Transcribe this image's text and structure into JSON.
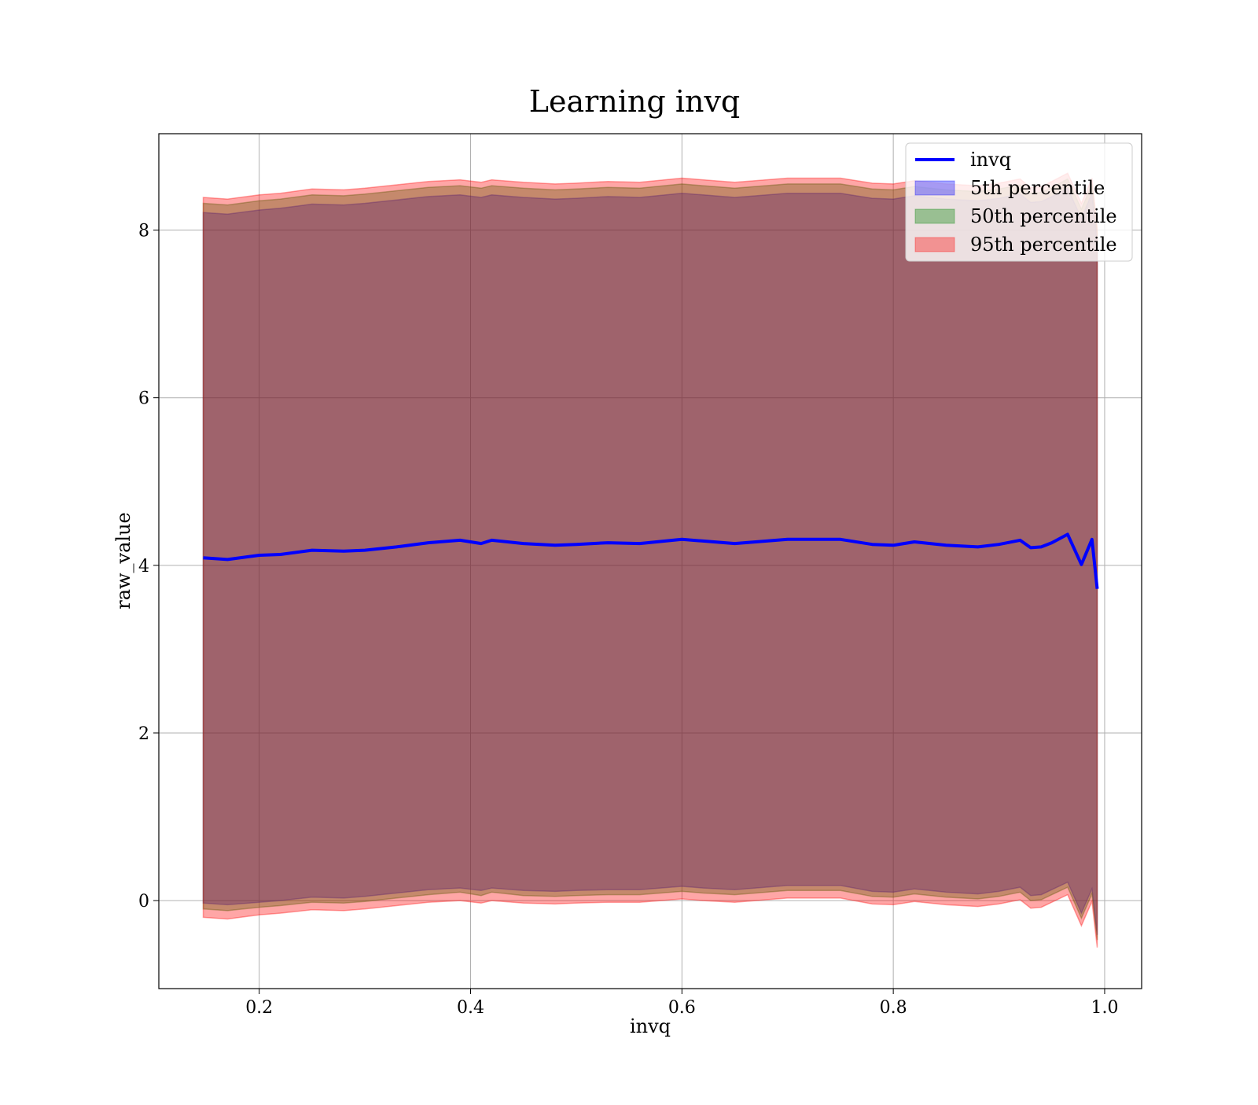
{
  "chart_data": {
    "type": "area",
    "title": "Learning invq",
    "xlabel": "invq",
    "ylabel": "raw_value",
    "xlim": [
      0.105,
      1.035
    ],
    "ylim": [
      -1.05,
      9.15
    ],
    "xticks": [
      0.2,
      0.4,
      0.6,
      0.8,
      1.0
    ],
    "xtick_labels": [
      "0.2",
      "0.4",
      "0.6",
      "0.8",
      "1.0"
    ],
    "yticks": [
      0,
      2,
      4,
      6,
      8
    ],
    "ytick_labels": [
      "0",
      "2",
      "4",
      "6",
      "8"
    ],
    "grid": true,
    "legend_position": "top-right",
    "x": [
      0.147,
      0.17,
      0.2,
      0.22,
      0.25,
      0.28,
      0.3,
      0.33,
      0.36,
      0.39,
      0.41,
      0.42,
      0.45,
      0.48,
      0.5,
      0.53,
      0.56,
      0.6,
      0.62,
      0.65,
      0.7,
      0.75,
      0.78,
      0.8,
      0.82,
      0.85,
      0.88,
      0.9,
      0.92,
      0.93,
      0.94,
      0.95,
      0.965,
      0.978,
      0.988,
      0.993
    ],
    "series": [
      {
        "name": "invq",
        "kind": "line",
        "color": "#0000ff",
        "values": [
          4.09,
          4.07,
          4.12,
          4.13,
          4.18,
          4.17,
          4.18,
          4.22,
          4.27,
          4.3,
          4.26,
          4.3,
          4.26,
          4.24,
          4.25,
          4.27,
          4.26,
          4.31,
          4.29,
          4.26,
          4.31,
          4.31,
          4.25,
          4.24,
          4.28,
          4.24,
          4.22,
          4.25,
          4.3,
          4.21,
          4.22,
          4.27,
          4.37,
          4.01,
          4.31,
          3.72
        ]
      },
      {
        "name": "5th percentile",
        "kind": "band",
        "color": "#0000ff",
        "lower": [
          -0.03,
          -0.05,
          -0.02,
          0.0,
          0.04,
          0.03,
          0.05,
          0.09,
          0.13,
          0.15,
          0.12,
          0.15,
          0.12,
          0.11,
          0.12,
          0.13,
          0.13,
          0.17,
          0.15,
          0.13,
          0.18,
          0.18,
          0.11,
          0.1,
          0.14,
          0.1,
          0.08,
          0.11,
          0.16,
          0.06,
          0.07,
          0.13,
          0.22,
          -0.15,
          0.14,
          -0.41
        ],
        "upper": [
          8.21,
          8.19,
          8.24,
          8.26,
          8.31,
          8.3,
          8.32,
          8.36,
          8.4,
          8.42,
          8.39,
          8.42,
          8.39,
          8.37,
          8.38,
          8.4,
          8.39,
          8.44,
          8.42,
          8.39,
          8.44,
          8.44,
          8.38,
          8.37,
          8.41,
          8.37,
          8.35,
          8.38,
          8.43,
          8.33,
          8.34,
          8.4,
          8.5,
          8.14,
          8.44,
          7.85
        ]
      },
      {
        "name": "50th percentile",
        "kind": "band",
        "color": "#008000",
        "lower": [
          -0.1,
          -0.12,
          -0.08,
          -0.06,
          -0.02,
          -0.03,
          -0.01,
          0.03,
          0.07,
          0.1,
          0.06,
          0.1,
          0.06,
          0.05,
          0.06,
          0.07,
          0.07,
          0.11,
          0.09,
          0.07,
          0.12,
          0.12,
          0.05,
          0.04,
          0.08,
          0.04,
          0.02,
          0.05,
          0.1,
          0.0,
          0.01,
          0.07,
          0.16,
          -0.21,
          0.08,
          -0.47
        ],
        "upper": [
          8.32,
          8.3,
          8.35,
          8.37,
          8.42,
          8.41,
          8.43,
          8.47,
          8.51,
          8.53,
          8.5,
          8.53,
          8.5,
          8.48,
          8.49,
          8.51,
          8.5,
          8.55,
          8.53,
          8.5,
          8.55,
          8.55,
          8.49,
          8.48,
          8.52,
          8.48,
          8.46,
          8.49,
          8.54,
          8.44,
          8.45,
          8.51,
          8.61,
          8.25,
          8.55,
          7.96
        ]
      },
      {
        "name": "95th percentile",
        "kind": "band",
        "color": "#ff0000",
        "lower": [
          -0.2,
          -0.22,
          -0.17,
          -0.15,
          -0.11,
          -0.12,
          -0.1,
          -0.06,
          -0.02,
          0.0,
          -0.03,
          0.0,
          -0.03,
          -0.04,
          -0.03,
          -0.02,
          -0.02,
          0.02,
          0.0,
          -0.02,
          0.03,
          0.03,
          -0.04,
          -0.05,
          -0.01,
          -0.05,
          -0.07,
          -0.04,
          0.01,
          -0.09,
          -0.08,
          -0.02,
          0.07,
          -0.3,
          -0.01,
          -0.56
        ],
        "upper": [
          8.39,
          8.37,
          8.42,
          8.44,
          8.49,
          8.48,
          8.5,
          8.54,
          8.58,
          8.6,
          8.57,
          8.6,
          8.57,
          8.55,
          8.56,
          8.58,
          8.57,
          8.62,
          8.6,
          8.57,
          8.62,
          8.62,
          8.56,
          8.55,
          8.59,
          8.55,
          8.53,
          8.56,
          8.61,
          8.51,
          8.52,
          8.58,
          8.68,
          8.32,
          8.62,
          8.03
        ]
      }
    ]
  }
}
